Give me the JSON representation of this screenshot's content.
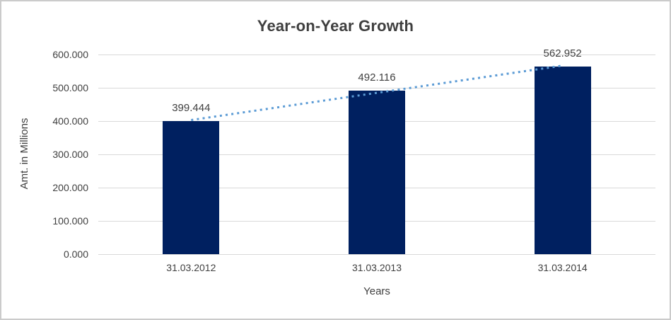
{
  "chart_data": {
    "type": "bar",
    "title": "Year-on-Year Growth",
    "xlabel": "Years",
    "ylabel": "Amt. in Millions",
    "categories": [
      "31.03.2012",
      "31.03.2013",
      "31.03.2014"
    ],
    "values": [
      399.444,
      492.116,
      562.952
    ],
    "value_labels": [
      "399.444",
      "492.116",
      "562.952"
    ],
    "ylim": [
      0,
      600
    ],
    "ytick_labels": [
      "0.000",
      "100.000",
      "200.000",
      "300.000",
      "400.000",
      "500.000",
      "600.000"
    ],
    "grid": true,
    "legend": false,
    "bar_color": "#002060",
    "gridline_color": "#d9d9d9",
    "trendline": {
      "type": "linear",
      "style": "dotted",
      "color": "#5b9bd5"
    }
  }
}
